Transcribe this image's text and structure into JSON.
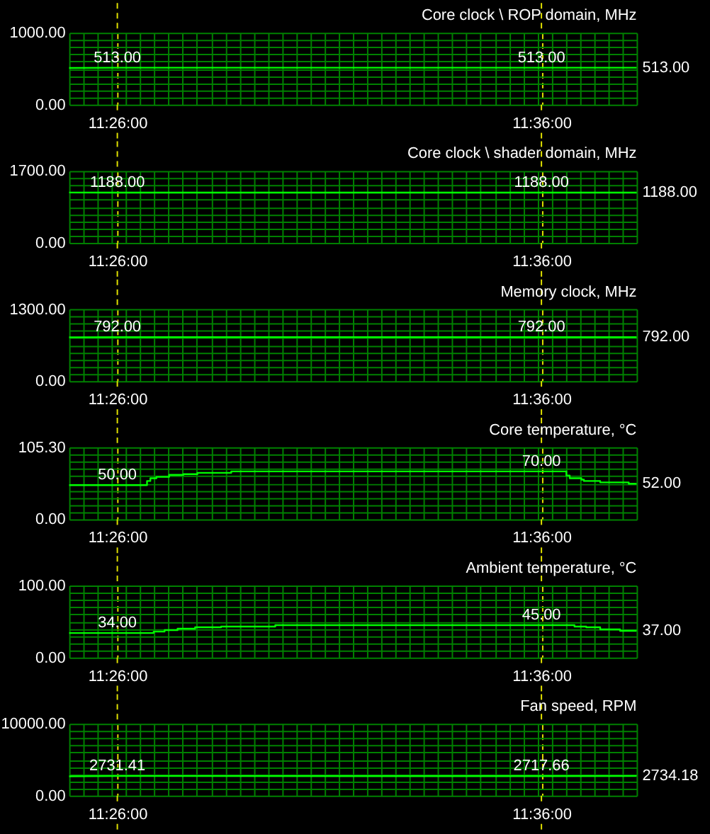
{
  "chart_data": [
    {
      "type": "line",
      "title": "Core clock \\ ROP domain, MHz",
      "xlim": [
        11.4144,
        11.6374
      ],
      "xticks": [
        {
          "value": 11.4144,
          "label": null
        },
        {
          "value": 11.42,
          "label": null
        },
        {
          "value": 11.4256,
          "label": null
        },
        {
          "value": 11.4312,
          "label": null
        },
        {
          "value": 11.433333,
          "label": "11:26:00"
        },
        {
          "value": 11.4367,
          "label": null
        },
        {
          "value": 11.4423,
          "label": null
        },
        {
          "value": 11.4479,
          "label": null
        },
        {
          "value": 11.4535,
          "label": null
        },
        {
          "value": 11.459,
          "label": null
        },
        {
          "value": 11.4646,
          "label": null
        },
        {
          "value": 11.4702,
          "label": null
        },
        {
          "value": 11.4758,
          "label": null
        },
        {
          "value": 11.4813,
          "label": null
        },
        {
          "value": 11.4869,
          "label": null
        },
        {
          "value": 11.4925,
          "label": null
        },
        {
          "value": 11.4981,
          "label": null
        },
        {
          "value": 11.5036,
          "label": null
        },
        {
          "value": 11.5092,
          "label": null
        },
        {
          "value": 11.5148,
          "label": null
        },
        {
          "value": 11.5204,
          "label": null
        },
        {
          "value": 11.5259,
          "label": null
        },
        {
          "value": 11.5315,
          "label": null
        },
        {
          "value": 11.5371,
          "label": null
        },
        {
          "value": 11.5426,
          "label": null
        },
        {
          "value": 11.5482,
          "label": null
        },
        {
          "value": 11.5538,
          "label": null
        },
        {
          "value": 11.5594,
          "label": null
        },
        {
          "value": 11.5649,
          "label": null
        },
        {
          "value": 11.5705,
          "label": null
        },
        {
          "value": 11.5761,
          "label": null
        },
        {
          "value": 11.5817,
          "label": null
        },
        {
          "value": 11.5872,
          "label": null
        },
        {
          "value": 11.5928,
          "label": null
        },
        {
          "value": 11.5984,
          "label": null
        },
        {
          "value": 11.6,
          "label": "11:36:00"
        },
        {
          "value": 11.604,
          "label": null
        },
        {
          "value": 11.6095,
          "label": null
        },
        {
          "value": 11.6151,
          "label": null
        },
        {
          "value": 11.6207,
          "label": null
        },
        {
          "value": 11.6263,
          "label": null
        },
        {
          "value": 11.6318,
          "label": null
        },
        {
          "value": 11.6374,
          "label": null
        }
      ],
      "ylim": [
        0,
        1000
      ],
      "yticks": [
        {
          "value": 0,
          "label": "0.00"
        },
        {
          "value": 100,
          "label": null
        },
        {
          "value": 200,
          "label": null
        },
        {
          "value": 300,
          "label": null
        },
        {
          "value": 400,
          "label": null
        },
        {
          "value": 500,
          "label": null
        },
        {
          "value": 600,
          "label": null
        },
        {
          "value": 700,
          "label": null
        },
        {
          "value": 800,
          "label": null
        },
        {
          "value": 900,
          "label": null
        },
        {
          "value": 1000,
          "label": "1000.00"
        }
      ],
      "grid": true,
      "series": [
        {
          "color": "#00ff00",
          "x": [
            11.4144,
            11.433333,
            11.6,
            11.6374
          ],
          "values": [
            510,
            513,
            513,
            513
          ],
          "value_labels": [
            null,
            "513.00",
            "513.00",
            "513.00"
          ]
        }
      ]
    },
    {
      "type": "line",
      "title": "Core clock \\ shader domain, MHz",
      "xlim": [
        11.4144,
        11.6374
      ],
      "xticks": [
        {
          "value": 11.4144,
          "label": null
        },
        {
          "value": 11.42,
          "label": null
        },
        {
          "value": 11.4256,
          "label": null
        },
        {
          "value": 11.4312,
          "label": null
        },
        {
          "value": 11.433333,
          "label": "11:26:00"
        },
        {
          "value": 11.4367,
          "label": null
        },
        {
          "value": 11.4423,
          "label": null
        },
        {
          "value": 11.4479,
          "label": null
        },
        {
          "value": 11.4535,
          "label": null
        },
        {
          "value": 11.459,
          "label": null
        },
        {
          "value": 11.4646,
          "label": null
        },
        {
          "value": 11.4702,
          "label": null
        },
        {
          "value": 11.4758,
          "label": null
        },
        {
          "value": 11.4813,
          "label": null
        },
        {
          "value": 11.4869,
          "label": null
        },
        {
          "value": 11.4925,
          "label": null
        },
        {
          "value": 11.4981,
          "label": null
        },
        {
          "value": 11.5036,
          "label": null
        },
        {
          "value": 11.5092,
          "label": null
        },
        {
          "value": 11.5148,
          "label": null
        },
        {
          "value": 11.5204,
          "label": null
        },
        {
          "value": 11.5259,
          "label": null
        },
        {
          "value": 11.5315,
          "label": null
        },
        {
          "value": 11.5371,
          "label": null
        },
        {
          "value": 11.5426,
          "label": null
        },
        {
          "value": 11.5482,
          "label": null
        },
        {
          "value": 11.5538,
          "label": null
        },
        {
          "value": 11.5594,
          "label": null
        },
        {
          "value": 11.5649,
          "label": null
        },
        {
          "value": 11.5705,
          "label": null
        },
        {
          "value": 11.5761,
          "label": null
        },
        {
          "value": 11.5817,
          "label": null
        },
        {
          "value": 11.5872,
          "label": null
        },
        {
          "value": 11.5928,
          "label": null
        },
        {
          "value": 11.5984,
          "label": null
        },
        {
          "value": 11.6,
          "label": "11:36:00"
        },
        {
          "value": 11.604,
          "label": null
        },
        {
          "value": 11.6095,
          "label": null
        },
        {
          "value": 11.6151,
          "label": null
        },
        {
          "value": 11.6207,
          "label": null
        },
        {
          "value": 11.6263,
          "label": null
        },
        {
          "value": 11.6318,
          "label": null
        },
        {
          "value": 11.6374,
          "label": null
        }
      ],
      "ylim": [
        0,
        1700
      ],
      "yticks": [
        {
          "value": 0,
          "label": "0.00"
        },
        {
          "value": 170,
          "label": null
        },
        {
          "value": 340,
          "label": null
        },
        {
          "value": 510,
          "label": null
        },
        {
          "value": 680,
          "label": null
        },
        {
          "value": 850,
          "label": null
        },
        {
          "value": 1020,
          "label": null
        },
        {
          "value": 1190,
          "label": null
        },
        {
          "value": 1360,
          "label": null
        },
        {
          "value": 1530,
          "label": null
        },
        {
          "value": 1700,
          "label": "1700.00"
        }
      ],
      "grid": true,
      "series": [
        {
          "color": "#00ff00",
          "x": [
            11.4144,
            11.433333,
            11.6,
            11.6374
          ],
          "values": [
            1190,
            1188,
            1188,
            1188
          ],
          "value_labels": [
            null,
            "1188.00",
            "1188.00",
            "1188.00"
          ]
        }
      ]
    },
    {
      "type": "line",
      "title": "Memory clock, MHz",
      "xlim": [
        11.4144,
        11.6374
      ],
      "xticks": [
        {
          "value": 11.4144,
          "label": null
        },
        {
          "value": 11.42,
          "label": null
        },
        {
          "value": 11.4256,
          "label": null
        },
        {
          "value": 11.4312,
          "label": null
        },
        {
          "value": 11.433333,
          "label": "11:26:00"
        },
        {
          "value": 11.4367,
          "label": null
        },
        {
          "value": 11.4423,
          "label": null
        },
        {
          "value": 11.4479,
          "label": null
        },
        {
          "value": 11.4535,
          "label": null
        },
        {
          "value": 11.459,
          "label": null
        },
        {
          "value": 11.4646,
          "label": null
        },
        {
          "value": 11.4702,
          "label": null
        },
        {
          "value": 11.4758,
          "label": null
        },
        {
          "value": 11.4813,
          "label": null
        },
        {
          "value": 11.4869,
          "label": null
        },
        {
          "value": 11.4925,
          "label": null
        },
        {
          "value": 11.4981,
          "label": null
        },
        {
          "value": 11.5036,
          "label": null
        },
        {
          "value": 11.5092,
          "label": null
        },
        {
          "value": 11.5148,
          "label": null
        },
        {
          "value": 11.5204,
          "label": null
        },
        {
          "value": 11.5259,
          "label": null
        },
        {
          "value": 11.5315,
          "label": null
        },
        {
          "value": 11.5371,
          "label": null
        },
        {
          "value": 11.5426,
          "label": null
        },
        {
          "value": 11.5482,
          "label": null
        },
        {
          "value": 11.5538,
          "label": null
        },
        {
          "value": 11.5594,
          "label": null
        },
        {
          "value": 11.5649,
          "label": null
        },
        {
          "value": 11.5705,
          "label": null
        },
        {
          "value": 11.5761,
          "label": null
        },
        {
          "value": 11.5817,
          "label": null
        },
        {
          "value": 11.5872,
          "label": null
        },
        {
          "value": 11.5928,
          "label": null
        },
        {
          "value": 11.5984,
          "label": null
        },
        {
          "value": 11.6,
          "label": "11:36:00"
        },
        {
          "value": 11.604,
          "label": null
        },
        {
          "value": 11.6095,
          "label": null
        },
        {
          "value": 11.6151,
          "label": null
        },
        {
          "value": 11.6207,
          "label": null
        },
        {
          "value": 11.6263,
          "label": null
        },
        {
          "value": 11.6318,
          "label": null
        },
        {
          "value": 11.6374,
          "label": null
        }
      ],
      "ylim": [
        0,
        1300
      ],
      "yticks": [
        {
          "value": 0,
          "label": "0.00"
        },
        {
          "value": 130,
          "label": null
        },
        {
          "value": 260,
          "label": null
        },
        {
          "value": 390,
          "label": null
        },
        {
          "value": 520,
          "label": null
        },
        {
          "value": 650,
          "label": null
        },
        {
          "value": 780,
          "label": null
        },
        {
          "value": 910,
          "label": null
        },
        {
          "value": 1040,
          "label": null
        },
        {
          "value": 1170,
          "label": null
        },
        {
          "value": 1300,
          "label": "1300.00"
        }
      ],
      "grid": true,
      "series": [
        {
          "color": "#00ff00",
          "x": [
            11.4144,
            11.433333,
            11.6,
            11.6374
          ],
          "values": [
            790,
            792,
            792,
            792
          ],
          "value_labels": [
            null,
            "792.00",
            "792.00",
            "792.00"
          ]
        }
      ]
    },
    {
      "type": "step",
      "title": "Core temperature, °C",
      "xlim": [
        11.4144,
        11.6374
      ],
      "xticks": [
        {
          "value": 11.4144,
          "label": null
        },
        {
          "value": 11.42,
          "label": null
        },
        {
          "value": 11.4256,
          "label": null
        },
        {
          "value": 11.4312,
          "label": null
        },
        {
          "value": 11.433333,
          "label": "11:26:00"
        },
        {
          "value": 11.4367,
          "label": null
        },
        {
          "value": 11.4423,
          "label": null
        },
        {
          "value": 11.4479,
          "label": null
        },
        {
          "value": 11.4535,
          "label": null
        },
        {
          "value": 11.459,
          "label": null
        },
        {
          "value": 11.4646,
          "label": null
        },
        {
          "value": 11.4702,
          "label": null
        },
        {
          "value": 11.4758,
          "label": null
        },
        {
          "value": 11.4813,
          "label": null
        },
        {
          "value": 11.4869,
          "label": null
        },
        {
          "value": 11.4925,
          "label": null
        },
        {
          "value": 11.4981,
          "label": null
        },
        {
          "value": 11.5036,
          "label": null
        },
        {
          "value": 11.5092,
          "label": null
        },
        {
          "value": 11.5148,
          "label": null
        },
        {
          "value": 11.5204,
          "label": null
        },
        {
          "value": 11.5259,
          "label": null
        },
        {
          "value": 11.5315,
          "label": null
        },
        {
          "value": 11.5371,
          "label": null
        },
        {
          "value": 11.5426,
          "label": null
        },
        {
          "value": 11.5482,
          "label": null
        },
        {
          "value": 11.5538,
          "label": null
        },
        {
          "value": 11.5594,
          "label": null
        },
        {
          "value": 11.5649,
          "label": null
        },
        {
          "value": 11.5705,
          "label": null
        },
        {
          "value": 11.5761,
          "label": null
        },
        {
          "value": 11.5817,
          "label": null
        },
        {
          "value": 11.5872,
          "label": null
        },
        {
          "value": 11.5928,
          "label": null
        },
        {
          "value": 11.5984,
          "label": null
        },
        {
          "value": 11.6,
          "label": "11:36:00"
        },
        {
          "value": 11.604,
          "label": null
        },
        {
          "value": 11.6095,
          "label": null
        },
        {
          "value": 11.6151,
          "label": null
        },
        {
          "value": 11.6207,
          "label": null
        },
        {
          "value": 11.6263,
          "label": null
        },
        {
          "value": 11.6318,
          "label": null
        },
        {
          "value": 11.6374,
          "label": null
        }
      ],
      "ylim": [
        0,
        105.3
      ],
      "yticks": [
        {
          "value": 0,
          "label": "0.00"
        },
        {
          "value": 10.53,
          "label": null
        },
        {
          "value": 21.06,
          "label": null
        },
        {
          "value": 31.59,
          "label": null
        },
        {
          "value": 42.12,
          "label": null
        },
        {
          "value": 52.65,
          "label": null
        },
        {
          "value": 63.18,
          "label": null
        },
        {
          "value": 73.71,
          "label": null
        },
        {
          "value": 84.24,
          "label": null
        },
        {
          "value": 94.77,
          "label": null
        },
        {
          "value": 105.3,
          "label": "105.30"
        }
      ],
      "grid": true,
      "series": [
        {
          "color": "#00ff00",
          "x": [
            11.4144,
            11.433333,
            11.445,
            11.4463,
            11.4487,
            11.4537,
            11.4593,
            11.4648,
            11.4781,
            11.6,
            11.6098,
            11.6111,
            11.6157,
            11.6167,
            11.6231,
            11.6343,
            11.6374
          ],
          "values": [
            50,
            50,
            56,
            60,
            62,
            65,
            66,
            68,
            70,
            70,
            64,
            60,
            58,
            56,
            54,
            52,
            52
          ],
          "value_labels": [
            null,
            "50.00",
            null,
            null,
            null,
            null,
            null,
            null,
            null,
            "70.00",
            null,
            null,
            null,
            null,
            null,
            null,
            "52.00"
          ]
        }
      ]
    },
    {
      "type": "step",
      "title": "Ambient temperature, °C",
      "xlim": [
        11.4144,
        11.6374
      ],
      "xticks": [
        {
          "value": 11.4144,
          "label": null
        },
        {
          "value": 11.42,
          "label": null
        },
        {
          "value": 11.4256,
          "label": null
        },
        {
          "value": 11.4312,
          "label": null
        },
        {
          "value": 11.433333,
          "label": "11:26:00"
        },
        {
          "value": 11.4367,
          "label": null
        },
        {
          "value": 11.4423,
          "label": null
        },
        {
          "value": 11.4479,
          "label": null
        },
        {
          "value": 11.4535,
          "label": null
        },
        {
          "value": 11.459,
          "label": null
        },
        {
          "value": 11.4646,
          "label": null
        },
        {
          "value": 11.4702,
          "label": null
        },
        {
          "value": 11.4758,
          "label": null
        },
        {
          "value": 11.4813,
          "label": null
        },
        {
          "value": 11.4869,
          "label": null
        },
        {
          "value": 11.4925,
          "label": null
        },
        {
          "value": 11.4981,
          "label": null
        },
        {
          "value": 11.5036,
          "label": null
        },
        {
          "value": 11.5092,
          "label": null
        },
        {
          "value": 11.5148,
          "label": null
        },
        {
          "value": 11.5204,
          "label": null
        },
        {
          "value": 11.5259,
          "label": null
        },
        {
          "value": 11.5315,
          "label": null
        },
        {
          "value": 11.5371,
          "label": null
        },
        {
          "value": 11.5426,
          "label": null
        },
        {
          "value": 11.5482,
          "label": null
        },
        {
          "value": 11.5538,
          "label": null
        },
        {
          "value": 11.5594,
          "label": null
        },
        {
          "value": 11.5649,
          "label": null
        },
        {
          "value": 11.5705,
          "label": null
        },
        {
          "value": 11.5761,
          "label": null
        },
        {
          "value": 11.5817,
          "label": null
        },
        {
          "value": 11.5872,
          "label": null
        },
        {
          "value": 11.5928,
          "label": null
        },
        {
          "value": 11.5984,
          "label": null
        },
        {
          "value": 11.6,
          "label": "11:36:00"
        },
        {
          "value": 11.604,
          "label": null
        },
        {
          "value": 11.6095,
          "label": null
        },
        {
          "value": 11.6151,
          "label": null
        },
        {
          "value": 11.6207,
          "label": null
        },
        {
          "value": 11.6263,
          "label": null
        },
        {
          "value": 11.6318,
          "label": null
        },
        {
          "value": 11.6374,
          "label": null
        }
      ],
      "ylim": [
        0,
        100
      ],
      "yticks": [
        {
          "value": 0,
          "label": "0.00"
        },
        {
          "value": 10,
          "label": null
        },
        {
          "value": 20,
          "label": null
        },
        {
          "value": 30,
          "label": null
        },
        {
          "value": 40,
          "label": null
        },
        {
          "value": 50,
          "label": null
        },
        {
          "value": 60,
          "label": null
        },
        {
          "value": 70,
          "label": null
        },
        {
          "value": 80,
          "label": null
        },
        {
          "value": 90,
          "label": null
        },
        {
          "value": 100,
          "label": "100.00"
        }
      ],
      "grid": true,
      "series": [
        {
          "color": "#00ff00",
          "x": [
            11.4144,
            11.433333,
            11.4476,
            11.4519,
            11.457,
            11.4639,
            11.4741,
            11.4954,
            11.6,
            11.613,
            11.6176,
            11.6231,
            11.6309,
            11.6374
          ],
          "values": [
            34,
            34,
            36,
            38,
            40,
            42,
            43,
            45,
            45,
            43,
            42,
            39,
            37,
            37
          ],
          "value_labels": [
            null,
            "34.00",
            null,
            null,
            null,
            null,
            null,
            null,
            "45.00",
            null,
            null,
            null,
            null,
            "37.00"
          ]
        }
      ]
    },
    {
      "type": "line",
      "title": "Fan speed, RPM",
      "xlim": [
        11.4144,
        11.6374
      ],
      "xticks": [
        {
          "value": 11.4144,
          "label": null
        },
        {
          "value": 11.42,
          "label": null
        },
        {
          "value": 11.4256,
          "label": null
        },
        {
          "value": 11.4312,
          "label": null
        },
        {
          "value": 11.433333,
          "label": "11:26:00"
        },
        {
          "value": 11.4367,
          "label": null
        },
        {
          "value": 11.4423,
          "label": null
        },
        {
          "value": 11.4479,
          "label": null
        },
        {
          "value": 11.4535,
          "label": null
        },
        {
          "value": 11.459,
          "label": null
        },
        {
          "value": 11.4646,
          "label": null
        },
        {
          "value": 11.4702,
          "label": null
        },
        {
          "value": 11.4758,
          "label": null
        },
        {
          "value": 11.4813,
          "label": null
        },
        {
          "value": 11.4869,
          "label": null
        },
        {
          "value": 11.4925,
          "label": null
        },
        {
          "value": 11.4981,
          "label": null
        },
        {
          "value": 11.5036,
          "label": null
        },
        {
          "value": 11.5092,
          "label": null
        },
        {
          "value": 11.5148,
          "label": null
        },
        {
          "value": 11.5204,
          "label": null
        },
        {
          "value": 11.5259,
          "label": null
        },
        {
          "value": 11.5315,
          "label": null
        },
        {
          "value": 11.5371,
          "label": null
        },
        {
          "value": 11.5426,
          "label": null
        },
        {
          "value": 11.5482,
          "label": null
        },
        {
          "value": 11.5538,
          "label": null
        },
        {
          "value": 11.5594,
          "label": null
        },
        {
          "value": 11.5649,
          "label": null
        },
        {
          "value": 11.5705,
          "label": null
        },
        {
          "value": 11.5761,
          "label": null
        },
        {
          "value": 11.5817,
          "label": null
        },
        {
          "value": 11.5872,
          "label": null
        },
        {
          "value": 11.5928,
          "label": null
        },
        {
          "value": 11.5984,
          "label": null
        },
        {
          "value": 11.6,
          "label": "11:36:00"
        },
        {
          "value": 11.604,
          "label": null
        },
        {
          "value": 11.6095,
          "label": null
        },
        {
          "value": 11.6151,
          "label": null
        },
        {
          "value": 11.6207,
          "label": null
        },
        {
          "value": 11.6263,
          "label": null
        },
        {
          "value": 11.6318,
          "label": null
        },
        {
          "value": 11.6374,
          "label": null
        }
      ],
      "ylim": [
        0,
        10000
      ],
      "yticks": [
        {
          "value": 0,
          "label": "0.00"
        },
        {
          "value": 1000,
          "label": null
        },
        {
          "value": 2000,
          "label": null
        },
        {
          "value": 3000,
          "label": null
        },
        {
          "value": 4000,
          "label": null
        },
        {
          "value": 5000,
          "label": null
        },
        {
          "value": 6000,
          "label": null
        },
        {
          "value": 7000,
          "label": null
        },
        {
          "value": 8000,
          "label": null
        },
        {
          "value": 9000,
          "label": null
        },
        {
          "value": 10000,
          "label": "10000.00"
        }
      ],
      "grid": true,
      "series": [
        {
          "color": "#00ff00",
          "x": [
            11.4144,
            11.433333,
            11.6,
            11.6374
          ],
          "values": [
            2700,
            2731.41,
            2717.66,
            2734.18
          ],
          "value_labels": [
            null,
            "2731.41",
            "2717.66",
            "2734.18"
          ]
        }
      ]
    }
  ]
}
